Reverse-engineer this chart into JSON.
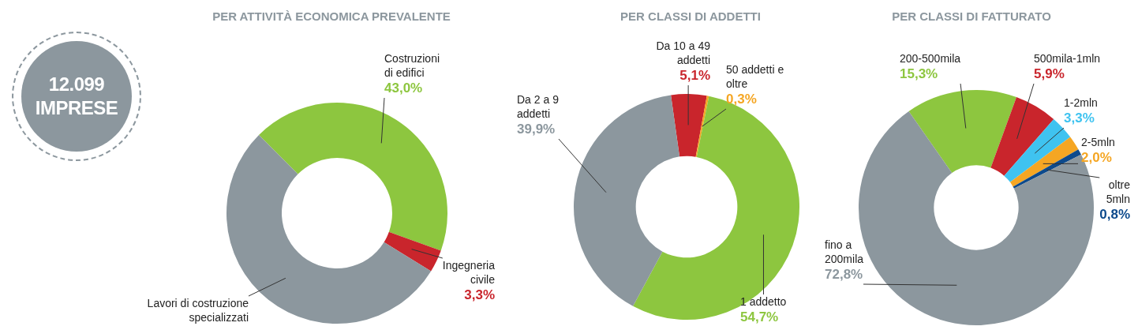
{
  "chart_data": [
    {
      "type": "other",
      "annotations": [
        "12.099",
        "IMPRESE"
      ]
    },
    {
      "type": "donut",
      "title": "PER ATTIVITÀ ECONOMICA PREVALENTE",
      "categories": [
        "Costruzioni di edifici",
        "Ingegneria civile",
        "Lavori di costruzione specializzati"
      ],
      "values": [
        43.0,
        3.3,
        53.7
      ],
      "colors": [
        "#8dc63f",
        "#c9252c",
        "#8c979e"
      ],
      "value_labels": [
        "43,0%",
        "3,3%",
        null
      ]
    },
    {
      "type": "donut",
      "title": "PER CLASSI DI ADDETTI",
      "categories": [
        "Da 10 a 49 addetti",
        "50 addetti e oltre",
        "1 addetto",
        "Da 2 a 9 addetti"
      ],
      "values": [
        5.1,
        0.3,
        54.7,
        39.9
      ],
      "colors": [
        "#c9252c",
        "#f5a623",
        "#8dc63f",
        "#8c979e"
      ],
      "value_labels": [
        "5,1%",
        "0,3%",
        "54,7%",
        "39,9%"
      ]
    },
    {
      "type": "donut",
      "title": "PER CLASSI DI FATTURATO",
      "categories": [
        "200-500mila",
        "500mila-1mln",
        "1-2mln",
        "2-5mln",
        "oltre 5mln",
        "fino a 200mila"
      ],
      "values": [
        15.3,
        5.9,
        3.3,
        2.0,
        0.8,
        72.8
      ],
      "colors": [
        "#8dc63f",
        "#c9252c",
        "#3fc3f0",
        "#f5a623",
        "#0d4a8c",
        "#8c979e"
      ],
      "value_labels": [
        "15,3%",
        "5,9%",
        "3,3%",
        "2,0%",
        "0,8%",
        "72,8%"
      ]
    }
  ]
}
